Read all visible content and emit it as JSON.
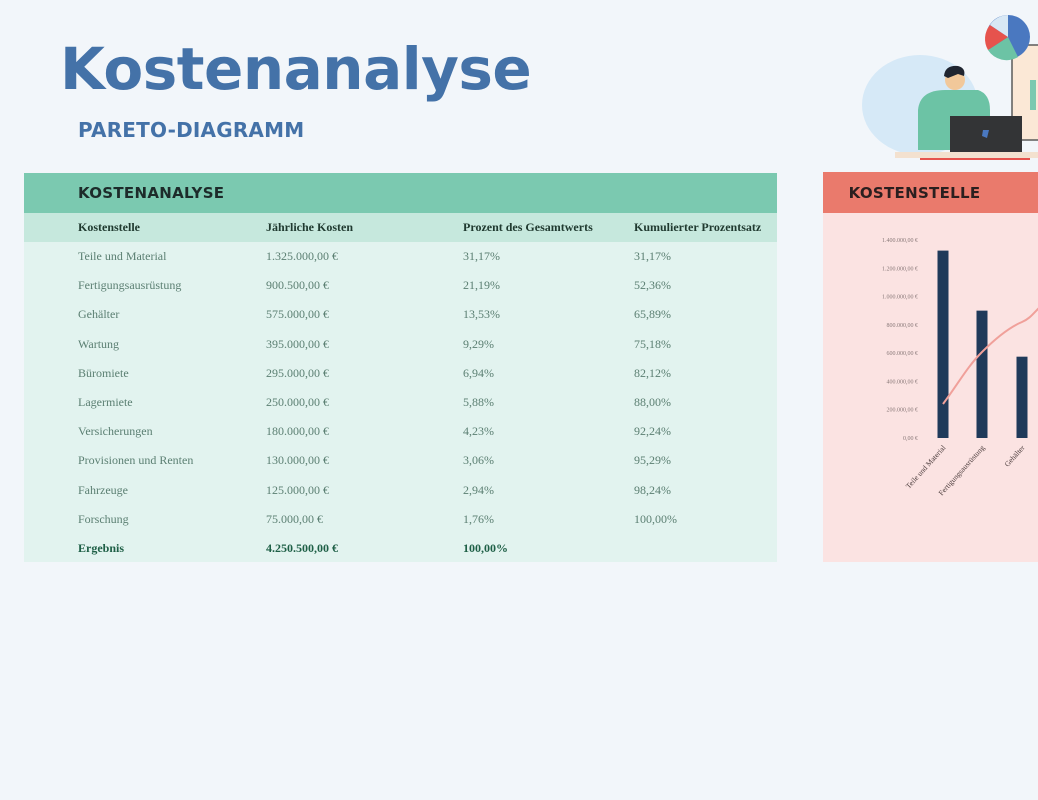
{
  "header": {
    "title": "Kostenanalyse",
    "subtitle": "PARETO-DIAGRAMM"
  },
  "table": {
    "title": "KOSTENANALYSE",
    "columns": [
      "Kostenstelle",
      "Jährliche Kosten",
      "Prozent des Gesamtwerts",
      "Kumulierter Prozentsatz"
    ],
    "rows": [
      {
        "name": "Teile und Material",
        "cost": "1.325.000,00 €",
        "pct": "31,17%",
        "cum": "31,17%"
      },
      {
        "name": "Fertigungsausrüstung",
        "cost": "900.500,00 €",
        "pct": "21,19%",
        "cum": "52,36%"
      },
      {
        "name": "Gehälter",
        "cost": "575.000,00 €",
        "pct": "13,53%",
        "cum": "65,89%"
      },
      {
        "name": "Wartung",
        "cost": "395.000,00 €",
        "pct": "9,29%",
        "cum": "75,18%"
      },
      {
        "name": "Büromiete",
        "cost": "295.000,00 €",
        "pct": "6,94%",
        "cum": "82,12%"
      },
      {
        "name": "Lagermiete",
        "cost": "250.000,00 €",
        "pct": "5,88%",
        "cum": "88,00%"
      },
      {
        "name": "Versicherungen",
        "cost": "180.000,00 €",
        "pct": "4,23%",
        "cum": "92,24%"
      },
      {
        "name": "Provisionen und Renten",
        "cost": "130.000,00 €",
        "pct": "3,06%",
        "cum": "95,29%"
      },
      {
        "name": "Fahrzeuge",
        "cost": "125.000,00 €",
        "pct": "2,94%",
        "cum": "98,24%"
      },
      {
        "name": "Forschung",
        "cost": "75.000,00 €",
        "pct": "1,76%",
        "cum": "100,00%"
      }
    ],
    "total": {
      "name": "Ergebnis",
      "cost": "4.250.500,00 €",
      "pct": "100,00%",
      "cum": ""
    }
  },
  "chart_panel": {
    "title": "KOSTENSTELLE"
  },
  "chart_data": {
    "type": "bar",
    "title": "KOSTENSTELLE",
    "xlabel": "",
    "ylabel": "",
    "ylim": [
      0,
      1400000
    ],
    "yticks": [
      "0,00 €",
      "200.000,00 €",
      "400.000,00 €",
      "600.000,00 €",
      "800.000,00 €",
      "1.000.000,00 €",
      "1.200.000,00 €",
      "1.400.000,00 €"
    ],
    "categories": [
      "Teile und Material",
      "Fertigungsausrüstung",
      "Gehälter"
    ],
    "series": [
      {
        "name": "Jährliche Kosten",
        "type": "bar",
        "color": "#1f3a5a",
        "values": [
          1325000,
          900500,
          575000
        ]
      },
      {
        "name": "Kumulierter Prozentsatz",
        "type": "line",
        "color": "#f0a09a",
        "values": [
          31.17,
          52.36,
          65.89
        ]
      }
    ],
    "note": "Chart is cropped on the right; only first three categories visible"
  },
  "colors": {
    "title_blue": "#4472a8",
    "table_header": "#7bc9b0",
    "table_bg": "#e2f3ef",
    "chart_header": "#ea7a6c",
    "chart_bg": "#fbe3e2",
    "bar": "#1f3a5a",
    "line": "#f0a09a"
  }
}
